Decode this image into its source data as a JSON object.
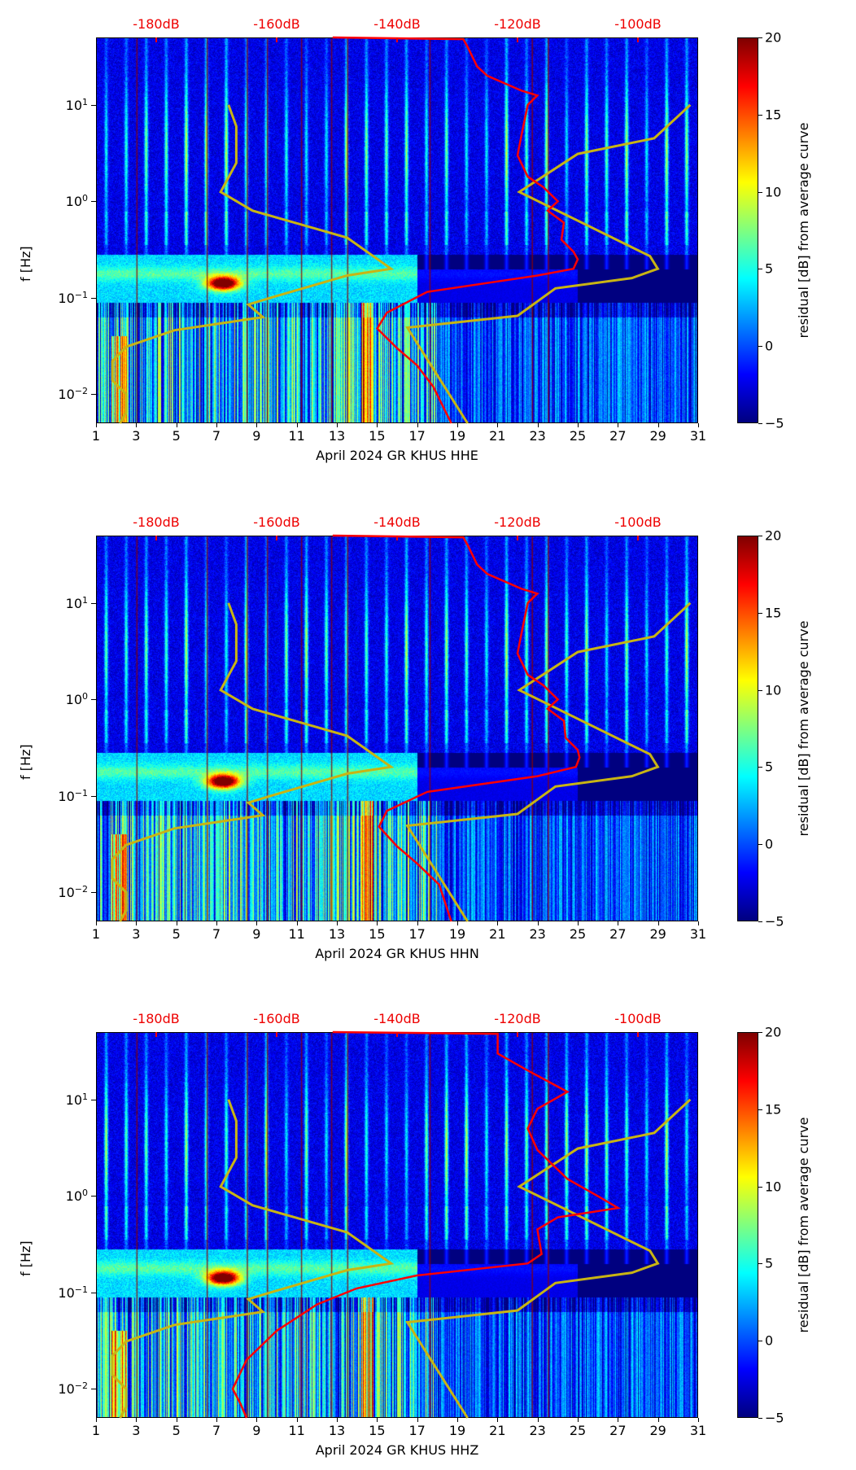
{
  "chart_data": {
    "type": "heatmap",
    "xlim": [
      1,
      31
    ],
    "x_ticks": [
      "1",
      "3",
      "5",
      "7",
      "9",
      "11",
      "13",
      "15",
      "17",
      "19",
      "21",
      "23",
      "25",
      "27",
      "29",
      "31"
    ],
    "ylim": [
      0.005,
      50
    ],
    "yscale": "log",
    "ylabel": "f [Hz]",
    "y_ticks": [
      {
        "base": "10",
        "exp": "1",
        "value": 10
      },
      {
        "base": "10",
        "exp": "0",
        "value": 1
      },
      {
        "base": "10",
        "exp": "−1",
        "value": 0.1
      },
      {
        "base": "10",
        "exp": "−2",
        "value": 0.01
      }
    ],
    "top_axis": {
      "range_db": [
        -190,
        -90
      ],
      "ticks": [
        {
          "label": "-180dB",
          "value": -180
        },
        {
          "label": "-160dB",
          "value": -160
        },
        {
          "label": "-140dB",
          "value": -140
        },
        {
          "label": "-120dB",
          "value": -120
        },
        {
          "label": "-100dB",
          "value": -100
        }
      ],
      "color": "#ff0000"
    },
    "colorbar": {
      "label": "residual [dB] from average curve",
      "range": [
        -5,
        20
      ],
      "ticks": [
        "−5",
        "0",
        "5",
        "10",
        "15",
        "20"
      ],
      "colormap": "jet"
    },
    "model_curves": {
      "color": "#c8b414",
      "low_noise_model": [
        [
          -168,
          10
        ],
        [
          -166.7,
          6
        ],
        [
          -166.7,
          2.5
        ],
        [
          -169.3,
          1.25
        ],
        [
          -164,
          0.8
        ],
        [
          -148.3,
          0.42
        ],
        [
          -141,
          0.2
        ],
        [
          -148.3,
          0.17
        ],
        [
          -161,
          0.1
        ],
        [
          -164.7,
          0.085
        ],
        [
          -162.3,
          0.063
        ],
        [
          -177,
          0.046
        ],
        [
          -185,
          0.031
        ],
        [
          -187.3,
          0.022
        ],
        [
          -187.3,
          0.014
        ],
        [
          -185,
          0.01
        ],
        [
          -185,
          0.0065
        ],
        [
          -186,
          0.005
        ]
      ],
      "high_noise_model": [
        [
          -91.3,
          10
        ],
        [
          -97.3,
          4.5
        ],
        [
          -110,
          3.1
        ],
        [
          -119.7,
          1.25
        ],
        [
          -98,
          0.27
        ],
        [
          -96.7,
          0.2
        ],
        [
          -101,
          0.16
        ],
        [
          -113.7,
          0.125
        ],
        [
          -120,
          0.065
        ],
        [
          -138.3,
          0.049
        ],
        [
          -128.3,
          0.005
        ]
      ]
    },
    "panels": [
      {
        "xlabel": "April 2024 GR KHUS  HHE",
        "median_curve_color": "#ff0000",
        "median_curve": [
          [
            -150.7,
            50
          ],
          [
            -129,
            48
          ],
          [
            -128.3,
            40
          ],
          [
            -126.7,
            25
          ],
          [
            -125,
            20
          ],
          [
            -119.3,
            14
          ],
          [
            -116.7,
            12.5
          ],
          [
            -118.3,
            10
          ],
          [
            -119.3,
            5
          ],
          [
            -120,
            3
          ],
          [
            -118.3,
            1.8
          ],
          [
            -115.7,
            1.4
          ],
          [
            -113.3,
            1.0
          ],
          [
            -115,
            0.8
          ],
          [
            -112.3,
            0.6
          ],
          [
            -112.7,
            0.4
          ],
          [
            -110.7,
            0.3
          ],
          [
            -110,
            0.25
          ],
          [
            -110.7,
            0.2
          ],
          [
            -116.7,
            0.17
          ],
          [
            -135,
            0.115
          ],
          [
            -141.7,
            0.07
          ],
          [
            -143.3,
            0.048
          ],
          [
            -140,
            0.03
          ],
          [
            -136.7,
            0.02
          ],
          [
            -134,
            0.012
          ],
          [
            -131,
            0.005
          ]
        ]
      },
      {
        "xlabel": "April 2024 GR KHUS  HHN",
        "median_curve_color": "#ff0000",
        "median_curve": [
          [
            -150.7,
            50
          ],
          [
            -129,
            48
          ],
          [
            -128.3,
            40
          ],
          [
            -126.7,
            25
          ],
          [
            -125,
            20
          ],
          [
            -119.3,
            14
          ],
          [
            -116.7,
            12.5
          ],
          [
            -118.3,
            10
          ],
          [
            -119.3,
            5
          ],
          [
            -120,
            3
          ],
          [
            -118.3,
            1.8
          ],
          [
            -115.7,
            1.4
          ],
          [
            -113.3,
            1.0
          ],
          [
            -115,
            0.8
          ],
          [
            -112.3,
            0.6
          ],
          [
            -112,
            0.4
          ],
          [
            -110,
            0.3
          ],
          [
            -109.7,
            0.25
          ],
          [
            -110.3,
            0.2
          ],
          [
            -116.7,
            0.16
          ],
          [
            -135,
            0.11
          ],
          [
            -141.7,
            0.07
          ],
          [
            -143,
            0.048
          ],
          [
            -140,
            0.03
          ],
          [
            -136.7,
            0.02
          ],
          [
            -133,
            0.012
          ],
          [
            -131,
            0.005
          ]
        ]
      },
      {
        "xlabel": "April 2024 GR KHUS  HHZ",
        "median_curve_color": "#ff0000",
        "median_curve": [
          [
            -150.7,
            50
          ],
          [
            -123.3,
            48
          ],
          [
            -123.3,
            30
          ],
          [
            -118.3,
            20
          ],
          [
            -111.7,
            12
          ],
          [
            -116.7,
            8
          ],
          [
            -118.3,
            5
          ],
          [
            -116.7,
            3
          ],
          [
            -111.7,
            1.5
          ],
          [
            -106.7,
            1.0
          ],
          [
            -103.3,
            0.75
          ],
          [
            -113.3,
            0.6
          ],
          [
            -116.7,
            0.45
          ],
          [
            -116,
            0.25
          ],
          [
            -118.3,
            0.2
          ],
          [
            -136.7,
            0.15
          ],
          [
            -146.7,
            0.11
          ],
          [
            -153.3,
            0.075
          ],
          [
            -160,
            0.04
          ],
          [
            -165,
            0.02
          ],
          [
            -167.3,
            0.01
          ],
          [
            -166,
            0.007
          ],
          [
            -165,
            0.005
          ]
        ]
      }
    ]
  }
}
